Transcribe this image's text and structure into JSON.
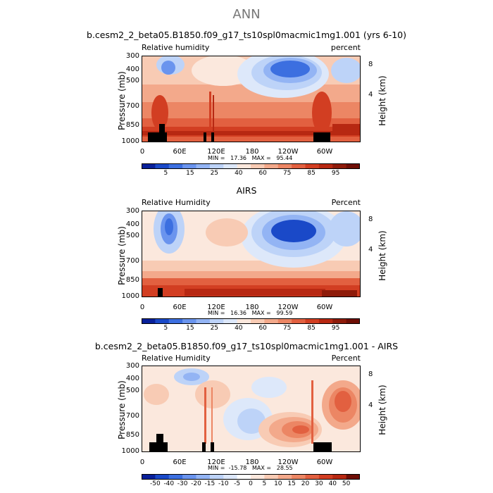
{
  "main_title": "ANN",
  "colors": {
    "rh_levels": [
      "#08209a",
      "#1a49c8",
      "#3c6fe0",
      "#6a94ee",
      "#93b4f4",
      "#bdd3f8",
      "#dde8fa",
      "#fbe8dd",
      "#f8cbb4",
      "#f3a98b",
      "#ec8664",
      "#e26040",
      "#d23e22",
      "#b72812",
      "#8e1b0a",
      "#6e0e05"
    ],
    "diff_levels": [
      "#08209a",
      "#1a49c8",
      "#3c6fe0",
      "#6a94ee",
      "#93b4f4",
      "#bdd3f8",
      "#dde8fa",
      "#ffffff",
      "#fbe8dd",
      "#f8cbb4",
      "#f3a98b",
      "#ec8664",
      "#e26040",
      "#d23e22",
      "#b72812",
      "#6e0e05"
    ]
  },
  "chart_data": [
    {
      "type": "heatmap",
      "title": "b.cesm2_2_beta05.B1850.f09_g17_ts10spl0macmic1mg1.001 (yrs 6-10)",
      "left_label": "Relative humidity",
      "right_label": "percent",
      "ylabel": "Pressure (mb)",
      "ylabel_right": "Height (km)",
      "x_ticks": [
        "0",
        "60E",
        "120E",
        "180",
        "120W",
        "60W"
      ],
      "y_ticks": [
        "300",
        "400",
        "500",
        "700",
        "850",
        "1000"
      ],
      "height_ticks": [
        "8",
        "4"
      ],
      "min_max": "MIN =   17.36   MAX =   95.44",
      "colorbar_labels": [
        "5",
        "15",
        "25",
        "40",
        "60",
        "75",
        "85",
        "95"
      ],
      "ylim": [
        1000,
        300
      ],
      "xlim": [
        0,
        360
      ]
    },
    {
      "type": "heatmap",
      "title": "AIRS",
      "left_label": "Relative Humidity",
      "right_label": "Percent",
      "ylabel": "Pressure (mb)",
      "ylabel_right": "Height (km)",
      "x_ticks": [
        "0",
        "60E",
        "120E",
        "180",
        "120W",
        "60W"
      ],
      "y_ticks": [
        "300",
        "400",
        "500",
        "700",
        "850",
        "1000"
      ],
      "height_ticks": [
        "8",
        "4"
      ],
      "min_max": "MIN =   16.36   MAX =   99.59",
      "colorbar_labels": [
        "5",
        "15",
        "25",
        "40",
        "60",
        "75",
        "85",
        "95"
      ],
      "ylim": [
        1000,
        300
      ],
      "xlim": [
        0,
        360
      ]
    },
    {
      "type": "heatmap",
      "title": "b.cesm2_2_beta05.B1850.f09_g17_ts10spl0macmic1mg1.001 - AIRS",
      "left_label": "Relative Humidity",
      "right_label": "Percent",
      "ylabel": "Pressure (mb)",
      "ylabel_right": "Height (km)",
      "x_ticks": [
        "0",
        "60E",
        "120E",
        "180",
        "120W",
        "60W"
      ],
      "y_ticks": [
        "300",
        "400",
        "500",
        "700",
        "850",
        "1000"
      ],
      "height_ticks": [
        "8",
        "4"
      ],
      "min_max": "MIN =  -15.78   MAX =   28.55",
      "colorbar_labels": [
        "-50",
        "-40",
        "-30",
        "-20",
        "-15",
        "-10",
        "-5",
        "0",
        "5",
        "10",
        "15",
        "20",
        "30",
        "40",
        "50"
      ],
      "ylim": [
        1000,
        300
      ],
      "xlim": [
        0,
        360
      ]
    }
  ]
}
